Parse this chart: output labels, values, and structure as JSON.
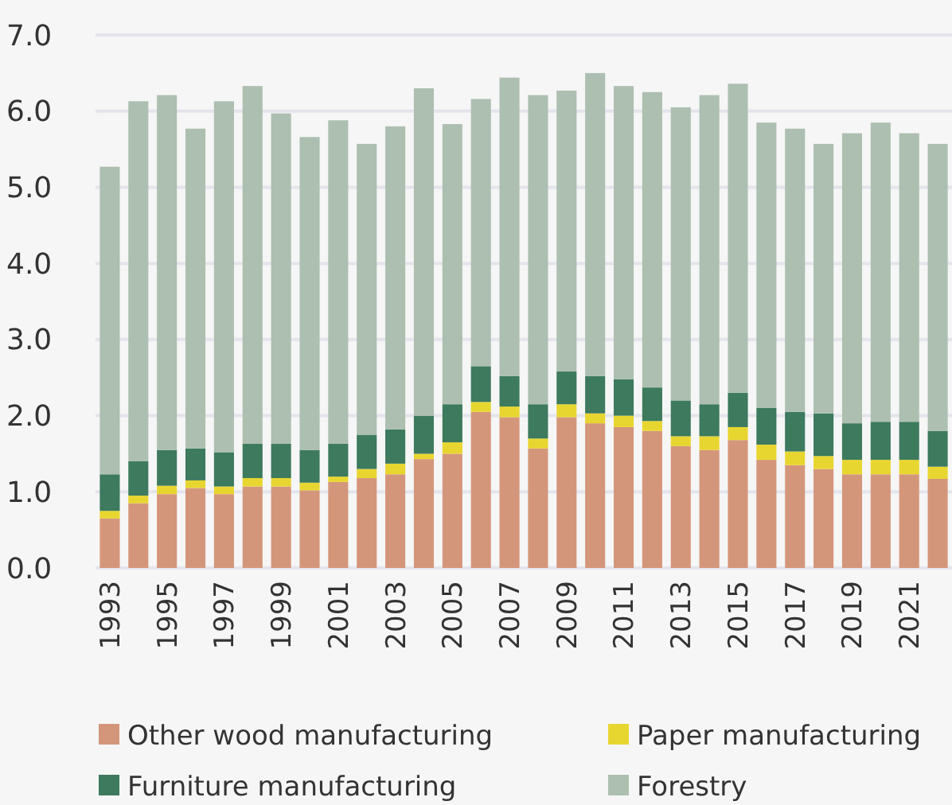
{
  "chart_data": {
    "type": "bar",
    "stacked": true,
    "categories": [
      "1993",
      null,
      "1995",
      null,
      "1997",
      null,
      "1999",
      null,
      "2001",
      null,
      "2003",
      null,
      "2005",
      null,
      "2007",
      null,
      "2009",
      null,
      "2011",
      null,
      "2013",
      null,
      "2015",
      null,
      "2017",
      null,
      "2019",
      null,
      "2021",
      null
    ],
    "series": [
      {
        "name": "Other wood manufacturing",
        "color": "#d4967a",
        "values": [
          0.65,
          0.85,
          0.97,
          1.05,
          0.97,
          1.07,
          1.07,
          1.02,
          1.13,
          1.18,
          1.23,
          1.43,
          1.5,
          2.05,
          1.98,
          1.57,
          1.98,
          1.9,
          1.85,
          1.8,
          1.6,
          1.55,
          1.68,
          1.42,
          1.35,
          1.3,
          1.23,
          1.23,
          1.23,
          1.17
        ]
      },
      {
        "name": "Paper manufacturing",
        "color": "#e8d630",
        "values": [
          0.1,
          0.1,
          0.11,
          0.1,
          0.1,
          0.11,
          0.11,
          0.1,
          0.07,
          0.12,
          0.14,
          0.07,
          0.15,
          0.13,
          0.14,
          0.13,
          0.17,
          0.13,
          0.15,
          0.13,
          0.13,
          0.18,
          0.17,
          0.2,
          0.18,
          0.17,
          0.19,
          0.19,
          0.19,
          0.16
        ]
      },
      {
        "name": "Furniture manufacturing",
        "color": "#3d7a5e",
        "values": [
          0.48,
          0.45,
          0.47,
          0.42,
          0.45,
          0.45,
          0.45,
          0.43,
          0.43,
          0.45,
          0.45,
          0.5,
          0.5,
          0.47,
          0.4,
          0.45,
          0.43,
          0.49,
          0.48,
          0.44,
          0.47,
          0.42,
          0.45,
          0.48,
          0.52,
          0.56,
          0.48,
          0.5,
          0.5,
          0.47
        ]
      },
      {
        "name": "Forestry",
        "color": "#adbfb0",
        "values": [
          4.04,
          4.73,
          4.66,
          4.2,
          4.61,
          4.7,
          4.34,
          4.11,
          4.25,
          3.82,
          3.98,
          4.3,
          3.68,
          3.51,
          3.92,
          4.06,
          3.69,
          3.98,
          3.85,
          3.88,
          3.85,
          4.06,
          4.06,
          3.75,
          3.72,
          3.54,
          3.81,
          3.93,
          3.79,
          3.77
        ]
      }
    ],
    "ylim": [
      0,
      7
    ],
    "yticks": [
      {
        "value": 0,
        "label": "0.0"
      },
      {
        "value": 1,
        "label": "1.0"
      },
      {
        "value": 2,
        "label": "2.0"
      },
      {
        "value": 3,
        "label": "3.0"
      },
      {
        "value": 4,
        "label": "4.0"
      },
      {
        "value": 5,
        "label": "5.0"
      },
      {
        "value": 6,
        "label": "6.0"
      },
      {
        "value": 7,
        "label": "7.0"
      }
    ],
    "grid": "y",
    "legend": "bottom"
  }
}
